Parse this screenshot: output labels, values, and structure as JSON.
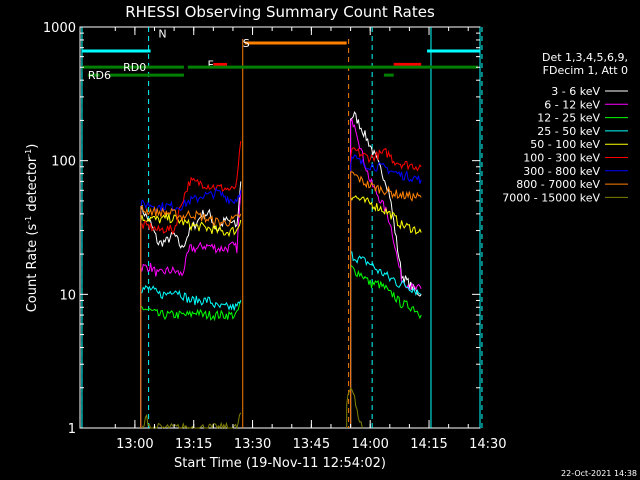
{
  "chart_data": {
    "type": "line",
    "title": "RHESSI Observing Summary Count Rates",
    "xlabel": "Start Time (19-Nov-11 12:54:02)",
    "ylabel_main": "Count Rate (s",
    "ylabel_sup1": "-1",
    "ylabel_mid": " detector",
    "ylabel_sup2": "-1",
    "ylabel_end": ")",
    "x_range_min": [
      -8,
      94
    ],
    "y_range": [
      1,
      1000
    ],
    "y_scale": "log",
    "x_ticks": [
      {
        "min": 6,
        "label": "13:00"
      },
      {
        "min": 21,
        "label": "13:15"
      },
      {
        "min": 36,
        "label": "13:30"
      },
      {
        "min": 51,
        "label": "13:45"
      },
      {
        "min": 66,
        "label": "14:00"
      },
      {
        "min": 81,
        "label": "14:15"
      },
      {
        "min": 96,
        "label": "14:30"
      }
    ],
    "y_ticks": [
      {
        "value": 1,
        "label": "1"
      },
      {
        "value": 10,
        "label": "10"
      },
      {
        "value": 100,
        "label": "100"
      },
      {
        "value": 1000,
        "label": "1000"
      }
    ],
    "legend_header": [
      "Det 1,3,4,5,6,9,",
      "FDecim 1, Att 0"
    ],
    "series": [
      {
        "name": "3 - 6 keV",
        "color": "#ffffff",
        "segments": [
          [
            [
              7.5,
              45
            ],
            [
              10,
              34
            ],
            [
              12,
              24
            ],
            [
              14,
              25
            ],
            [
              16,
              28
            ],
            [
              18,
              22
            ],
            [
              20,
              30
            ],
            [
              22,
              35
            ],
            [
              23,
              40
            ],
            [
              25,
              40
            ],
            [
              27,
              30
            ],
            [
              29,
              36
            ],
            [
              31,
              34
            ],
            [
              32,
              32
            ],
            [
              33,
              70
            ]
          ],
          [
            [
              61,
              210
            ],
            [
              62,
              220
            ],
            [
              64,
              170
            ],
            [
              66,
              130
            ],
            [
              68,
              95
            ],
            [
              70,
              70
            ],
            [
              71,
              55
            ],
            [
              72,
              35
            ],
            [
              73,
              22
            ],
            [
              74,
              14
            ],
            [
              77,
              11
            ],
            [
              79,
              10
            ]
          ]
        ]
      },
      {
        "name": "6 - 12 keV",
        "color": "#ff00ff",
        "segments": [
          [
            [
              7.5,
              16
            ],
            [
              10,
              16
            ],
            [
              12,
              14
            ],
            [
              14,
              15
            ],
            [
              16,
              15
            ],
            [
              18,
              14
            ],
            [
              20,
              22
            ],
            [
              22,
              22
            ],
            [
              23,
              23
            ],
            [
              25,
              23
            ],
            [
              27,
              22
            ],
            [
              29,
              22
            ],
            [
              31,
              23
            ],
            [
              32,
              22
            ],
            [
              33,
              60
            ]
          ],
          [
            [
              61,
              190
            ],
            [
              62,
              195
            ],
            [
              64,
              110
            ],
            [
              66,
              70
            ],
            [
              68,
              55
            ],
            [
              70,
              42
            ],
            [
              71,
              35
            ],
            [
              72,
              26
            ],
            [
              73,
              18
            ],
            [
              74,
              13
            ],
            [
              77,
              11
            ],
            [
              79,
              11
            ]
          ]
        ]
      },
      {
        "name": "12 - 25 keV",
        "color": "#00ff00",
        "segments": [
          [
            [
              7.5,
              8
            ],
            [
              10,
              7.5
            ],
            [
              12,
              7
            ],
            [
              14,
              7
            ],
            [
              16,
              7
            ],
            [
              18,
              7
            ],
            [
              20,
              7
            ],
            [
              22,
              7.5
            ],
            [
              23,
              7
            ],
            [
              25,
              7
            ],
            [
              27,
              7
            ],
            [
              29,
              7
            ],
            [
              31,
              7
            ],
            [
              32,
              7
            ],
            [
              33,
              9
            ]
          ],
          [
            [
              61,
              16
            ],
            [
              62,
              15
            ],
            [
              64,
              14
            ],
            [
              66,
              12
            ],
            [
              68,
              12
            ],
            [
              70,
              11
            ],
            [
              71,
              10
            ],
            [
              72,
              10
            ],
            [
              73,
              9
            ],
            [
              74,
              8.5
            ],
            [
              77,
              8
            ],
            [
              79,
              7
            ]
          ]
        ]
      },
      {
        "name": "25 - 50 keV",
        "color": "#00ffff",
        "segments": [
          [
            [
              7.5,
              11
            ],
            [
              10,
              11
            ],
            [
              12,
              10
            ],
            [
              14,
              10
            ],
            [
              16,
              11
            ],
            [
              18,
              10
            ],
            [
              20,
              9
            ],
            [
              22,
              9
            ],
            [
              23,
              9
            ],
            [
              25,
              9
            ],
            [
              27,
              8
            ],
            [
              29,
              8
            ],
            [
              31,
              8
            ],
            [
              32,
              8
            ],
            [
              33,
              9
            ]
          ],
          [
            [
              61,
              20
            ],
            [
              62,
              19
            ],
            [
              64,
              18
            ],
            [
              66,
              17
            ],
            [
              68,
              15
            ],
            [
              70,
              14
            ],
            [
              71,
              13
            ],
            [
              72,
              13
            ],
            [
              73,
              12
            ],
            [
              74,
              12
            ],
            [
              77,
              11
            ],
            [
              79,
              10
            ]
          ]
        ]
      },
      {
        "name": "50 - 100 keV",
        "color": "#ffff00",
        "segments": [
          [
            [
              7.5,
              37
            ],
            [
              10,
              37
            ],
            [
              12,
              36
            ],
            [
              14,
              37
            ],
            [
              16,
              37
            ],
            [
              18,
              35
            ],
            [
              20,
              33
            ],
            [
              22,
              32
            ],
            [
              23,
              32
            ],
            [
              25,
              31
            ],
            [
              27,
              30
            ],
            [
              29,
              29
            ],
            [
              31,
              30
            ],
            [
              32,
              30
            ],
            [
              33,
              36
            ]
          ],
          [
            [
              61,
              55
            ],
            [
              62,
              54
            ],
            [
              64,
              50
            ],
            [
              66,
              48
            ],
            [
              68,
              45
            ],
            [
              70,
              42
            ],
            [
              71,
              40
            ],
            [
              72,
              38
            ],
            [
              73,
              35
            ],
            [
              74,
              33
            ],
            [
              77,
              31
            ],
            [
              79,
              29
            ]
          ]
        ]
      },
      {
        "name": "100 - 300 keV",
        "color": "#ff0000",
        "segments": [
          [
            [
              7.5,
              33
            ],
            [
              10,
              32
            ],
            [
              12,
              30
            ],
            [
              14,
              31
            ],
            [
              16,
              30
            ],
            [
              18,
              50
            ],
            [
              20,
              70
            ],
            [
              22,
              68
            ],
            [
              23,
              68
            ],
            [
              25,
              65
            ],
            [
              27,
              63
            ],
            [
              29,
              62
            ],
            [
              31,
              60
            ],
            [
              32,
              68
            ],
            [
              33,
              140
            ]
          ],
          [
            [
              61,
              110
            ],
            [
              62,
              120
            ],
            [
              64,
              110
            ],
            [
              66,
              105
            ],
            [
              68,
              110
            ],
            [
              70,
              115
            ],
            [
              71,
              110
            ],
            [
              72,
              100
            ],
            [
              73,
              98
            ],
            [
              74,
              95
            ],
            [
              77,
              92
            ],
            [
              79,
              90
            ]
          ]
        ]
      },
      {
        "name": "300 - 800 keV",
        "color": "#0000ff",
        "segments": [
          [
            [
              7.5,
              47
            ],
            [
              10,
              47
            ],
            [
              12,
              45
            ],
            [
              14,
              46
            ],
            [
              16,
              45
            ],
            [
              18,
              46
            ],
            [
              20,
              50
            ],
            [
              22,
              52
            ],
            [
              23,
              55
            ],
            [
              25,
              55
            ],
            [
              27,
              58
            ],
            [
              29,
              54
            ],
            [
              31,
              50
            ],
            [
              32,
              52
            ],
            [
              33,
              60
            ]
          ],
          [
            [
              61,
              100
            ],
            [
              62,
              105
            ],
            [
              64,
              95
            ],
            [
              66,
              92
            ],
            [
              68,
              90
            ],
            [
              70,
              88
            ],
            [
              71,
              85
            ],
            [
              72,
              82
            ],
            [
              73,
              80
            ],
            [
              74,
              78
            ],
            [
              77,
              75
            ],
            [
              79,
              72
            ]
          ]
        ]
      },
      {
        "name": "800 - 7000 keV",
        "color": "#ff8000",
        "segments": [
          [
            [
              7.5,
              43
            ],
            [
              10,
              42
            ],
            [
              12,
              41
            ],
            [
              14,
              41
            ],
            [
              16,
              40
            ],
            [
              18,
              38
            ],
            [
              20,
              40
            ],
            [
              22,
              39
            ],
            [
              23,
              38
            ],
            [
              25,
              36
            ],
            [
              27,
              35
            ],
            [
              29,
              34
            ],
            [
              31,
              36
            ],
            [
              32,
              37
            ],
            [
              33,
              40
            ]
          ],
          [
            [
              61,
              80
            ],
            [
              62,
              78
            ],
            [
              64,
              70
            ],
            [
              66,
              65
            ],
            [
              68,
              62
            ],
            [
              70,
              60
            ],
            [
              71,
              58
            ],
            [
              72,
              57
            ],
            [
              73,
              56
            ],
            [
              74,
              55
            ],
            [
              77,
              54
            ],
            [
              79,
              53
            ]
          ]
        ]
      },
      {
        "name": "7000 - 15000 keV",
        "color": "#808000",
        "segments": [
          [
            [
              8,
              1
            ],
            [
              9,
              1.2
            ],
            [
              10,
              1
            ],
            [
              32,
              1
            ],
            [
              33,
              1.3
            ]
          ],
          [
            [
              60,
              1.5
            ],
            [
              61,
              2
            ],
            [
              62,
              1.8
            ],
            [
              63,
              1.2
            ],
            [
              64,
              1
            ]
          ]
        ]
      }
    ],
    "background_lines": {
      "cyan_solid_x": [
        -7.5,
        81.5,
        94
      ],
      "cyan_dashed_x": [
        -7.5,
        9.5,
        66.5,
        94.5
      ],
      "orange_solid_x": [
        33.5
      ],
      "orange_dashed_x": [
        60.5
      ]
    },
    "flags": [
      {
        "label": "N",
        "color": "#00ffff",
        "label_min": 12,
        "label_log": 2.95,
        "bars": [
          {
            "x": [
              -7.5,
              10
            ],
            "log": 2.82
          },
          {
            "x": [
              80.5,
              94
            ],
            "log": 2.82
          }
        ]
      },
      {
        "label": "F",
        "color": "#ff0000",
        "label_min": 24.5,
        "label_log": 2.72,
        "bars": [
          {
            "x": [
              26,
              29.5
            ],
            "log": 2.72
          },
          {
            "x": [
              72,
              79
            ],
            "log": 2.72
          }
        ]
      },
      {
        "label": "S",
        "color": "#ff8000",
        "label_min": 33.5,
        "label_log": 2.88,
        "bars": [
          {
            "x": [
              34,
              60
            ],
            "log": 2.88
          }
        ]
      },
      {
        "label": "RD0",
        "color": "#008000",
        "label_min": 3,
        "label_log": 2.7,
        "bars": [
          {
            "x": [
              -7.5,
              18.5
            ],
            "log": 2.7
          },
          {
            "x": [
              19.5,
              93.5
            ],
            "log": 2.7
          }
        ]
      },
      {
        "label": "RD6",
        "color": "#008000",
        "label_min": -6,
        "label_log": 2.64,
        "bars": [
          {
            "x": [
              -6,
              -3
            ],
            "log": 2.64
          },
          {
            "x": [
              -0.5,
              18.5
            ],
            "log": 2.64
          },
          {
            "x": [
              69.5,
              72
            ],
            "log": 2.64
          }
        ]
      }
    ],
    "timestamp": "22-Oct-2021 14:38"
  }
}
